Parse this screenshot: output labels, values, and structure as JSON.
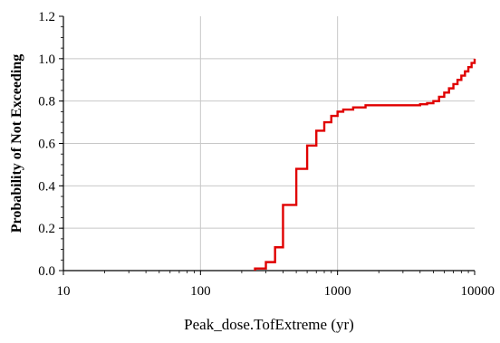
{
  "chart_data": {
    "type": "line",
    "title": "",
    "xlabel": "Peak_dose.TofExtreme (yr)",
    "ylabel": "Probability of Not Exceeding",
    "x_scale": "log",
    "xlim": [
      10,
      10000
    ],
    "ylim": [
      0,
      1.2
    ],
    "grid": true,
    "legend": "none",
    "line_color": "#e00000",
    "x_ticks": [
      10,
      100,
      1000,
      10000
    ],
    "x_tick_labels": [
      "10",
      "100",
      "1000",
      "10000"
    ],
    "y_ticks": [
      0,
      0.2,
      0.4,
      0.6,
      0.8,
      1.0,
      1.2
    ],
    "y_tick_labels": [
      "0.0",
      "0.2",
      "0.4",
      "0.6",
      "0.8",
      "1.0",
      "1.2"
    ],
    "series": [
      {
        "step": true,
        "x": [
          250,
          300,
          350,
          400,
          500,
          600,
          700,
          800,
          900,
          1000,
          1100,
          1300,
          1600,
          2000,
          3000,
          4000,
          4500,
          5000,
          5500,
          6000,
          6500,
          7000,
          7500,
          8000,
          8500,
          9000,
          9500,
          10000
        ],
        "y": [
          0.01,
          0.04,
          0.11,
          0.31,
          0.48,
          0.59,
          0.66,
          0.7,
          0.73,
          0.75,
          0.76,
          0.77,
          0.78,
          0.78,
          0.78,
          0.785,
          0.79,
          0.8,
          0.82,
          0.84,
          0.86,
          0.88,
          0.9,
          0.92,
          0.94,
          0.96,
          0.98,
          1.0
        ]
      }
    ]
  }
}
